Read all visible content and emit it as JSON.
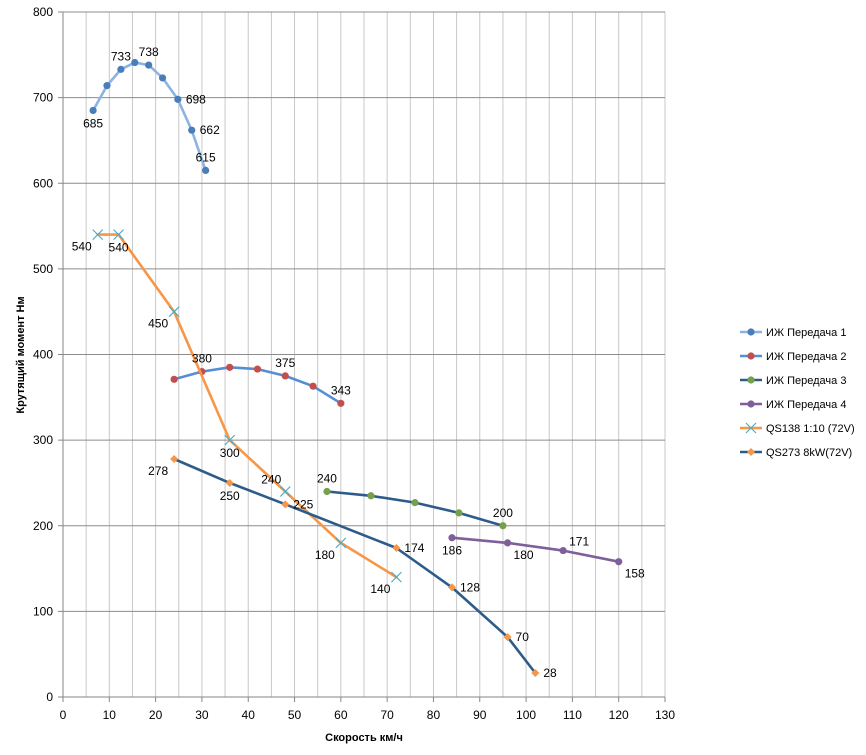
{
  "chart_data": {
    "type": "line",
    "title": "",
    "xlabel": "Скорость км/ч",
    "ylabel": "Крутящий момент Нм",
    "xlim": [
      0,
      130
    ],
    "ylim": [
      0,
      800
    ],
    "x_ticks": [
      0,
      10,
      20,
      30,
      40,
      50,
      60,
      70,
      80,
      90,
      100,
      110,
      120,
      130
    ],
    "y_ticks": [
      0,
      100,
      200,
      300,
      400,
      500,
      600,
      700,
      800
    ],
    "x_grid_step": 5,
    "y_grid_step": 100,
    "grid": true,
    "legend": "right",
    "series": [
      {
        "name": "ИЖ Передача 1",
        "color": "#8db3e2",
        "marker_color": "#4a7ebb",
        "marker": "circle",
        "points": [
          {
            "x": 6.5,
            "y": 685,
            "label": "685",
            "lpos": "below"
          },
          {
            "x": 9.5,
            "y": 714
          },
          {
            "x": 12.5,
            "y": 733,
            "label": "733",
            "lpos": "above"
          },
          {
            "x": 15.5,
            "y": 741
          },
          {
            "x": 18.5,
            "y": 738,
            "label": "738",
            "lpos": "above"
          },
          {
            "x": 21.5,
            "y": 723
          },
          {
            "x": 24.8,
            "y": 698,
            "label": "698",
            "lpos": "right"
          },
          {
            "x": 27.8,
            "y": 662,
            "label": "662",
            "lpos": "right"
          },
          {
            "x": 30.8,
            "y": 615,
            "label": "615",
            "lpos": "above"
          }
        ]
      },
      {
        "name": "ИЖ Передача 2",
        "color": "#558ed5",
        "marker_color": "#c0504d",
        "marker": "circle",
        "points": [
          {
            "x": 24,
            "y": 371
          },
          {
            "x": 30,
            "y": 380,
            "label": "380",
            "lpos": "above"
          },
          {
            "x": 36,
            "y": 385
          },
          {
            "x": 42,
            "y": 383
          },
          {
            "x": 48,
            "y": 375,
            "label": "375",
            "lpos": "above"
          },
          {
            "x": 54,
            "y": 363
          },
          {
            "x": 60,
            "y": 343,
            "label": "343",
            "lpos": "above"
          }
        ]
      },
      {
        "name": "ИЖ Передача 3",
        "color": "#2e5c8a",
        "marker_color": "#77a04c",
        "marker": "circle",
        "points": [
          {
            "x": 57,
            "y": 240,
            "label": "240",
            "lpos": "above"
          },
          {
            "x": 66.5,
            "y": 235
          },
          {
            "x": 76,
            "y": 227
          },
          {
            "x": 85.5,
            "y": 215
          },
          {
            "x": 95,
            "y": 200,
            "label": "200",
            "lpos": "above"
          }
        ]
      },
      {
        "name": "ИЖ Передача 4",
        "color": "#7f5f9a",
        "marker_color": "#7f5f9a",
        "marker": "circle",
        "points": [
          {
            "x": 84,
            "y": 186,
            "label": "186",
            "lpos": "below"
          },
          {
            "x": 96,
            "y": 180,
            "label": "180",
            "lpos": "below-right"
          },
          {
            "x": 108,
            "y": 171,
            "label": "171",
            "lpos": "above-right"
          },
          {
            "x": 120,
            "y": 158,
            "label": "158",
            "lpos": "below-right"
          }
        ]
      },
      {
        "name": "QS138 1:10 (72V)",
        "color": "#f79646",
        "marker_color": "#4bacc6",
        "marker": "x",
        "points": [
          {
            "x": 7.5,
            "y": 540,
            "label": "540",
            "lpos": "below-left"
          },
          {
            "x": 12,
            "y": 540,
            "label": "540",
            "lpos": "below"
          },
          {
            "x": 24,
            "y": 450,
            "label": "450",
            "lpos": "below-left"
          },
          {
            "x": 36,
            "y": 300,
            "label": "300",
            "lpos": "below"
          },
          {
            "x": 48,
            "y": 240,
            "label": "240",
            "lpos": "above-left"
          },
          {
            "x": 60,
            "y": 180,
            "label": "180",
            "lpos": "below-left"
          },
          {
            "x": 72,
            "y": 140,
            "label": "140",
            "lpos": "below-left"
          }
        ]
      },
      {
        "name": "QS273 8kW(72V)",
        "color": "#2e5c8a",
        "marker_color": "#f79646",
        "marker": "diamond",
        "points": [
          {
            "x": 24,
            "y": 278,
            "label": "278",
            "lpos": "below-left"
          },
          {
            "x": 36,
            "y": 250,
            "label": "250",
            "lpos": "below"
          },
          {
            "x": 48,
            "y": 225,
            "label": "225",
            "lpos": "right"
          },
          {
            "x": 72,
            "y": 174,
            "label": "174",
            "lpos": "right"
          },
          {
            "x": 84,
            "y": 128,
            "label": "128",
            "lpos": "right"
          },
          {
            "x": 96,
            "y": 70,
            "label": "70",
            "lpos": "right"
          },
          {
            "x": 102,
            "y": 28,
            "label": "28",
            "lpos": "right"
          }
        ]
      }
    ]
  }
}
